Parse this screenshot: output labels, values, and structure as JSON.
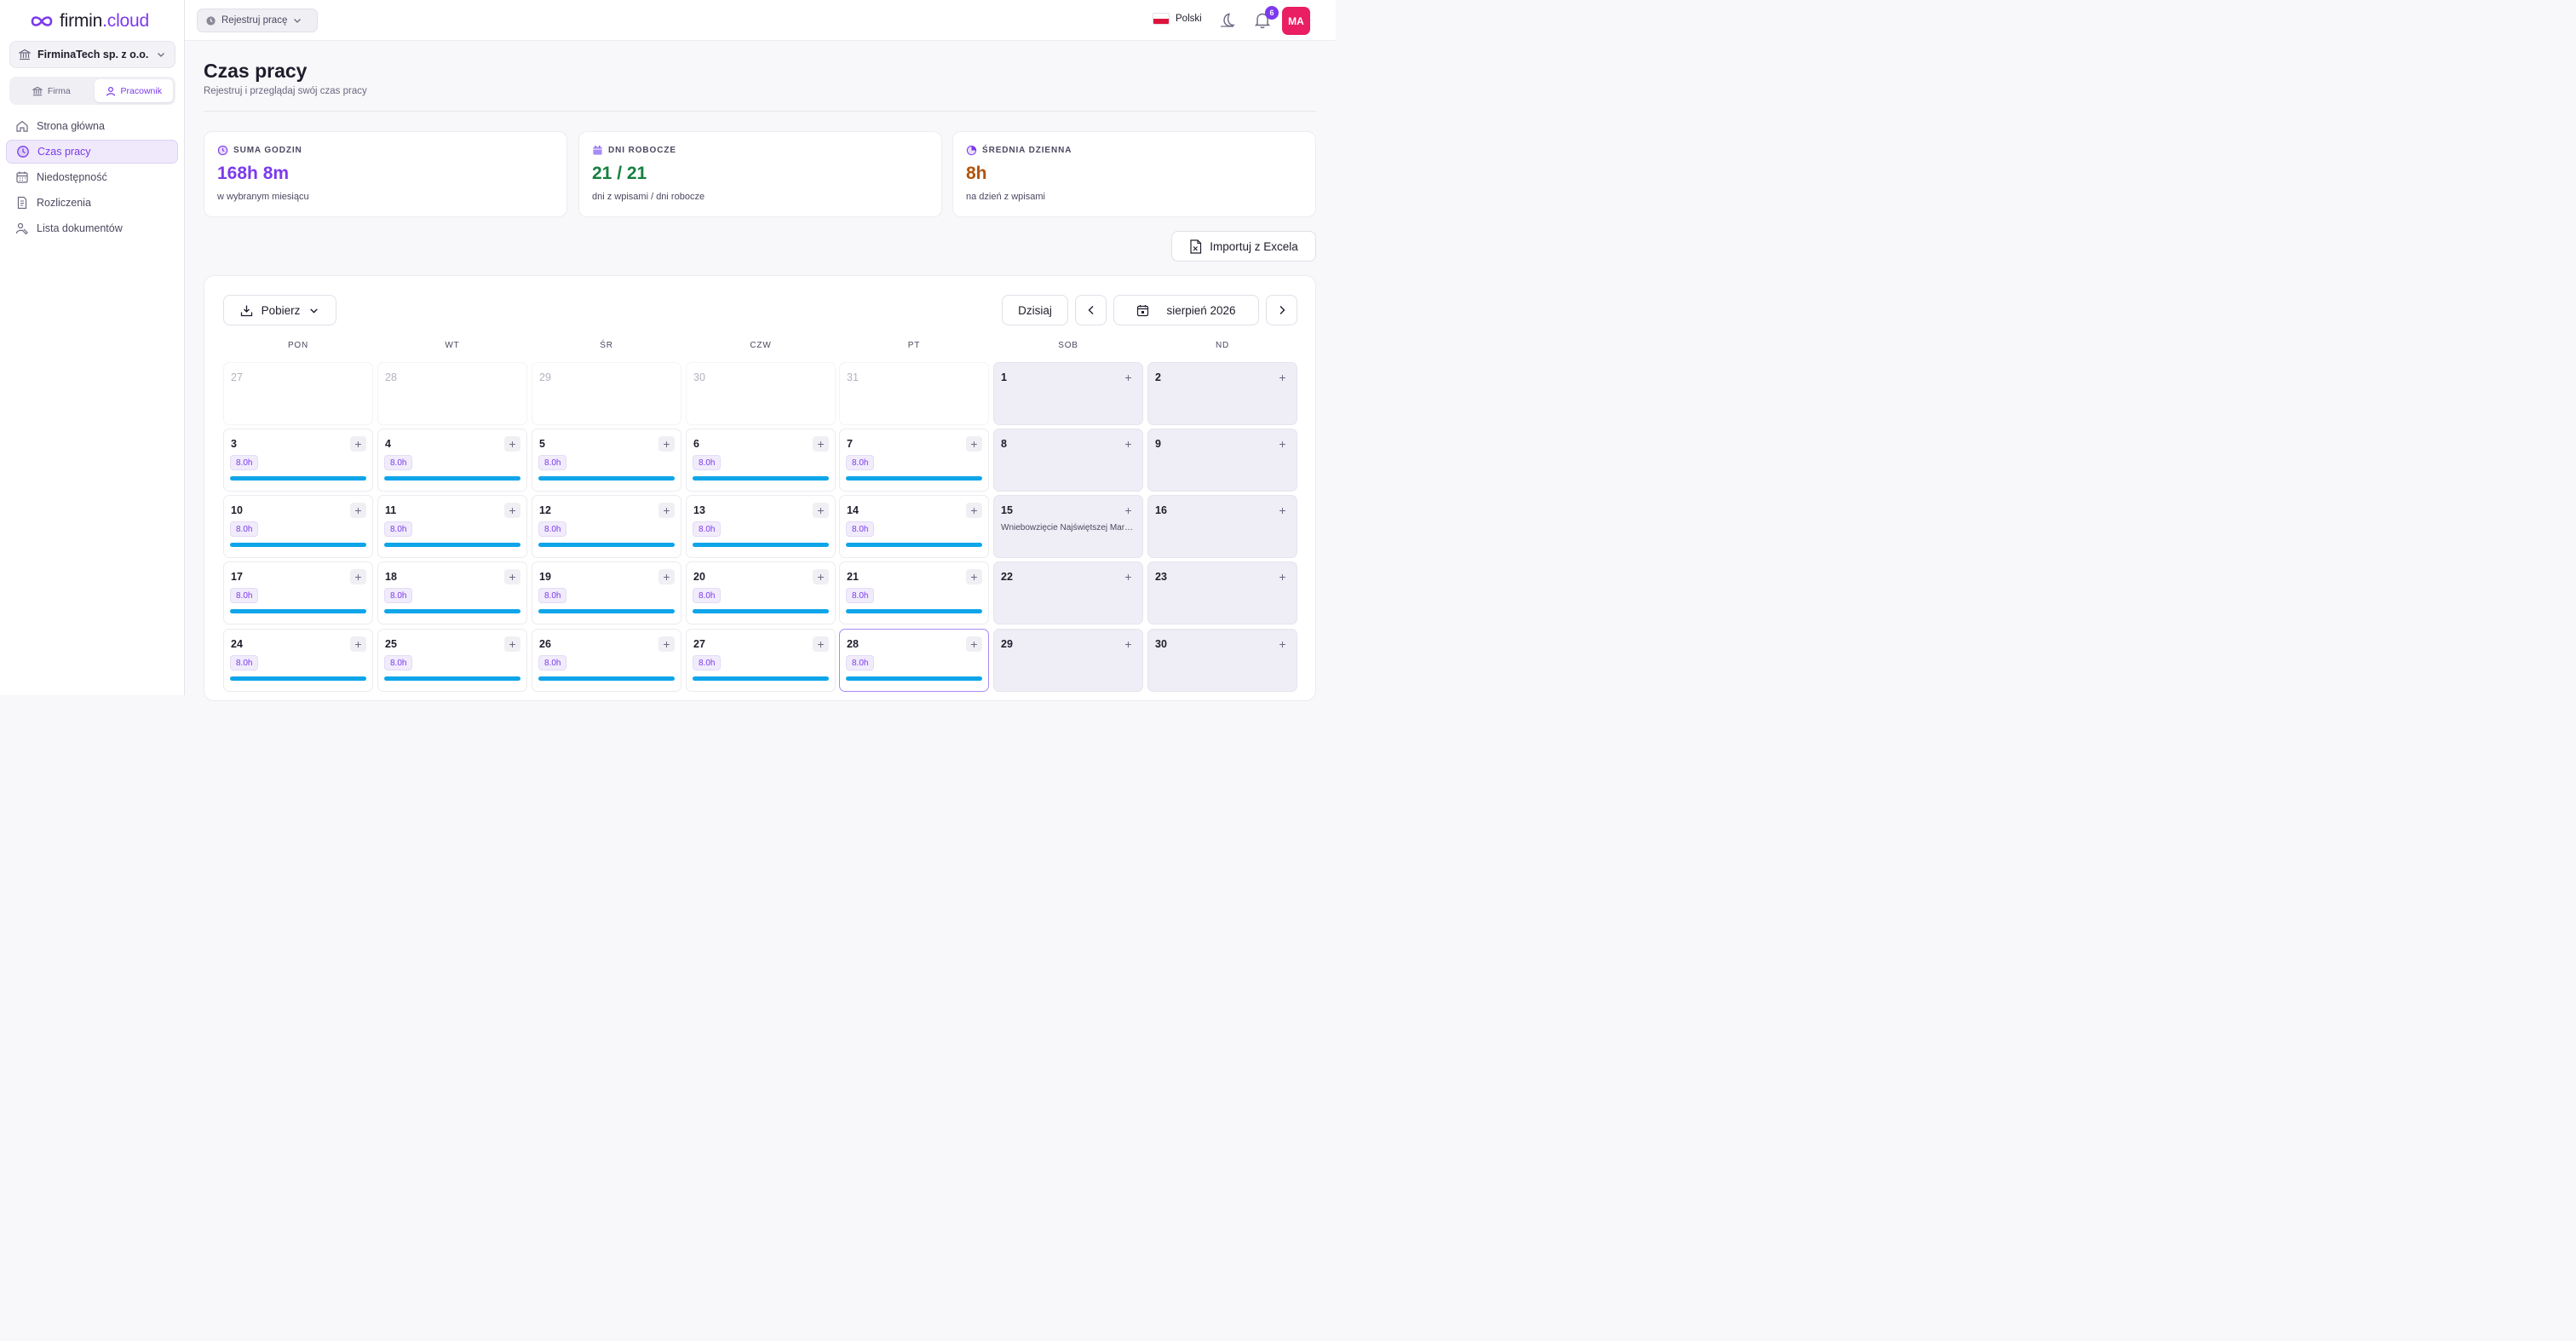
{
  "app": {
    "logo_text": "firmin",
    "logo_accent": ".cloud",
    "brand_color": "#7c3aed"
  },
  "sidebar": {
    "company": "FirminaTech sp. z o.o.",
    "roles": [
      "Firma",
      "Pracownik"
    ],
    "active_role": "Pracownik",
    "items": [
      {
        "label": "Strona główna",
        "icon": "home-icon"
      },
      {
        "label": "Czas pracy",
        "icon": "clock-icon",
        "active": true
      },
      {
        "label": "Niedostępność",
        "icon": "calendar-icon"
      },
      {
        "label": "Rozliczenia",
        "icon": "document-icon"
      },
      {
        "label": "Lista dokumentów",
        "icon": "user-document-icon"
      }
    ]
  },
  "topbar": {
    "register_label": "Rejestruj pracę",
    "language": "Polski",
    "notifications_count": "6",
    "avatar_initials": "MA"
  },
  "page": {
    "title": "Czas pracy",
    "subtitle": "Rejestruj i przeglądaj swój czas pracy"
  },
  "stats": [
    {
      "label": "SUMA GODZIN",
      "value": "168h 8m",
      "desc": "w wybranym miesiącu",
      "color": "#7c3aed",
      "icon": "clock-icon"
    },
    {
      "label": "DNI ROBOCZE",
      "value": "21 / 21",
      "desc": "dni z wpisami / dni robocze",
      "color": "#15803d",
      "icon": "calendar-icon"
    },
    {
      "label": "ŚREDNIA DZIENNA",
      "value": "8h",
      "desc": "na dzień z wpisami",
      "color": "#b45309",
      "icon": "pie-icon"
    }
  ],
  "import_label": "Importuj z Excela",
  "calendar": {
    "download_label": "Pobierz",
    "today_label": "Dzisiaj",
    "month_label": "sierpień 2026",
    "weekdays": [
      "PON",
      "WT",
      "ŚR",
      "CZW",
      "PT",
      "SOB",
      "ND"
    ],
    "bar_color": "#0ea5e9",
    "weeks": [
      [
        {
          "day": "27",
          "outside": true
        },
        {
          "day": "28",
          "outside": true
        },
        {
          "day": "29",
          "outside": true
        },
        {
          "day": "30",
          "outside": true
        },
        {
          "day": "31",
          "outside": true
        },
        {
          "day": "1",
          "weekend": true
        },
        {
          "day": "2",
          "weekend": true
        }
      ],
      [
        {
          "day": "3",
          "hours": "8.0h"
        },
        {
          "day": "4",
          "hours": "8.0h"
        },
        {
          "day": "5",
          "hours": "8.0h"
        },
        {
          "day": "6",
          "hours": "8.0h"
        },
        {
          "day": "7",
          "hours": "8.0h"
        },
        {
          "day": "8",
          "weekend": true
        },
        {
          "day": "9",
          "weekend": true
        }
      ],
      [
        {
          "day": "10",
          "hours": "8.0h"
        },
        {
          "day": "11",
          "hours": "8.0h"
        },
        {
          "day": "12",
          "hours": "8.0h"
        },
        {
          "day": "13",
          "hours": "8.0h"
        },
        {
          "day": "14",
          "hours": "8.0h"
        },
        {
          "day": "15",
          "weekend": true,
          "holiday": "Wniebowzięcie Najświętszej Mar…"
        },
        {
          "day": "16",
          "weekend": true
        }
      ],
      [
        {
          "day": "17",
          "hours": "8.0h"
        },
        {
          "day": "18",
          "hours": "8.0h"
        },
        {
          "day": "19",
          "hours": "8.0h"
        },
        {
          "day": "20",
          "hours": "8.0h"
        },
        {
          "day": "21",
          "hours": "8.0h"
        },
        {
          "day": "22",
          "weekend": true
        },
        {
          "day": "23",
          "weekend": true
        }
      ],
      [
        {
          "day": "24",
          "hours": "8.0h"
        },
        {
          "day": "25",
          "hours": "8.0h"
        },
        {
          "day": "26",
          "hours": "8.0h"
        },
        {
          "day": "27",
          "hours": "8.0h"
        },
        {
          "day": "28",
          "hours": "8.0h",
          "today": true
        },
        {
          "day": "29",
          "weekend": true
        },
        {
          "day": "30",
          "weekend": true
        }
      ]
    ]
  }
}
